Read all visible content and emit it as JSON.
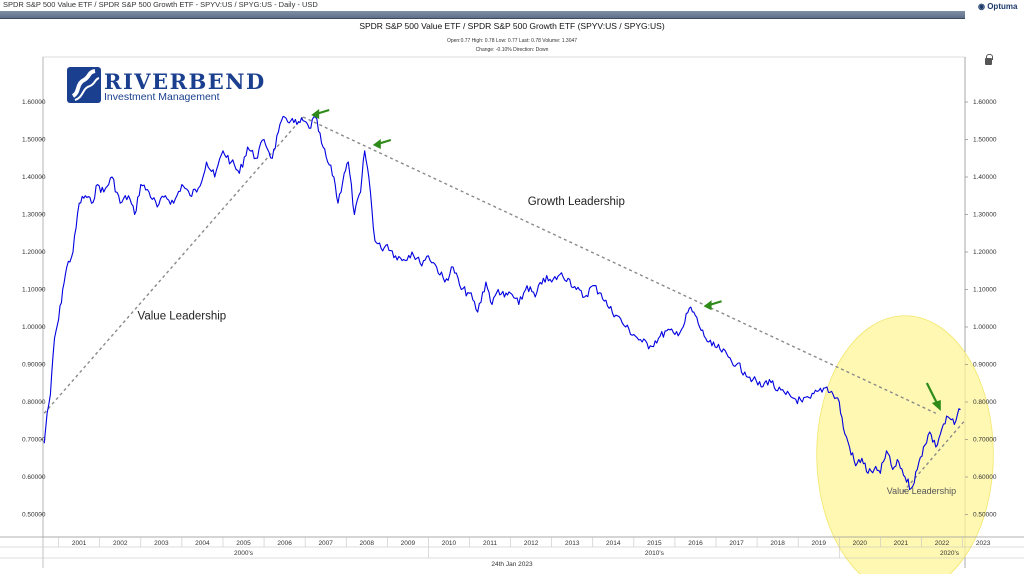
{
  "window": {
    "title": "SPDR S&P 500 Value ETF / SPDR S&P 500 Growth ETF - SPYV:US / SPYG:US - Daily - USD",
    "brand": "Optuma"
  },
  "header": {
    "title": "SPDR S&P 500 Value ETF / SPDR S&P 500 Growth ETF (SPYV:US / SPYG:US)",
    "ohlc": "Open:0.77   High: 0.78   Low: 0.77   Last: 0.78   Volume: 1.3047",
    "change": "Change: -0.10%   Direction: Down"
  },
  "logo": {
    "name": "RIVERBEND",
    "subtitle": "Investment Management"
  },
  "footer": {
    "date": "24th Jan 2023"
  },
  "colors": {
    "price_line": "#0000e0",
    "trend_line": "#8a8a8a",
    "arrow": "#2e8b1a",
    "highlight": "#fff59a",
    "logo": "#1b3f8f"
  },
  "chart_data": {
    "type": "line",
    "title": "SPDR S&P 500 Value ETF / SPDR S&P 500 Growth ETF (SPYV:US / SPYG:US)",
    "xlabel": "",
    "ylabel": "",
    "xlim": [
      2000.62,
      2023.06
    ],
    "ylim": [
      0.44,
      1.72
    ],
    "yticks": [
      0.5,
      0.6,
      0.7,
      0.8,
      0.9,
      1.0,
      1.1,
      1.2,
      1.3,
      1.4,
      1.5,
      1.6
    ],
    "ytick_labels": [
      "0.50000",
      "0.60000",
      "0.70000",
      "0.80000",
      "0.90000",
      "1.00000",
      "1.10000",
      "1.20000",
      "1.30000",
      "1.40000",
      "1.50000",
      "1.60000"
    ],
    "year_labels": [
      "2001",
      "2002",
      "2003",
      "2004",
      "2005",
      "2006",
      "2007",
      "2008",
      "2009",
      "2010",
      "2011",
      "2012",
      "2013",
      "2014",
      "2015",
      "2016",
      "2017",
      "2018",
      "2019",
      "2020",
      "2021",
      "2022",
      "2023"
    ],
    "decade_labels": [
      "2000's",
      "2010's",
      "2020's"
    ],
    "series": [
      {
        "name": "SPYV:US / SPYG:US",
        "x": [
          2000.65,
          2000.72,
          2000.8,
          2000.9,
          2001.0,
          2001.1,
          2001.2,
          2001.35,
          2001.5,
          2001.65,
          2001.8,
          2001.95,
          2002.1,
          2002.3,
          2002.5,
          2002.7,
          2002.85,
          2003.0,
          2003.2,
          2003.4,
          2003.6,
          2003.8,
          2004.0,
          2004.2,
          2004.4,
          2004.6,
          2004.8,
          2005.0,
          2005.2,
          2005.4,
          2005.6,
          2005.8,
          2006.0,
          2006.2,
          2006.35,
          2006.5,
          2006.65,
          2006.8,
          2006.95,
          2007.1,
          2007.25,
          2007.4,
          2007.55,
          2007.7,
          2007.8,
          2007.95,
          2008.05,
          2008.2,
          2008.35,
          2008.45,
          2008.55,
          2008.7,
          2008.85,
          2009.0,
          2009.2,
          2009.4,
          2009.6,
          2009.8,
          2010.0,
          2010.2,
          2010.4,
          2010.6,
          2010.8,
          2011.0,
          2011.2,
          2011.4,
          2011.55,
          2011.7,
          2011.85,
          2012.0,
          2012.2,
          2012.4,
          2012.6,
          2012.8,
          2013.0,
          2013.2,
          2013.4,
          2013.6,
          2013.8,
          2014.0,
          2014.2,
          2014.4,
          2014.6,
          2014.8,
          2015.0,
          2015.2,
          2015.4,
          2015.6,
          2015.8,
          2016.0,
          2016.2,
          2016.35,
          2016.5,
          2016.6,
          2016.75,
          2016.9,
          2017.1,
          2017.3,
          2017.5,
          2017.7,
          2017.9,
          2018.1,
          2018.3,
          2018.5,
          2018.7,
          2018.9,
          2019.1,
          2019.3,
          2019.5,
          2019.7,
          2019.85,
          2020.0,
          2020.1,
          2020.25,
          2020.4,
          2020.55,
          2020.7,
          2020.85,
          2021.0,
          2021.15,
          2021.3,
          2021.45,
          2021.6,
          2021.75,
          2021.9,
          2022.05,
          2022.2,
          2022.35,
          2022.5,
          2022.65,
          2022.8,
          2022.95
        ],
        "values": [
          0.69,
          0.77,
          0.82,
          0.97,
          1.02,
          1.1,
          1.16,
          1.2,
          1.33,
          1.35,
          1.33,
          1.38,
          1.36,
          1.4,
          1.33,
          1.35,
          1.3,
          1.38,
          1.36,
          1.32,
          1.35,
          1.33,
          1.38,
          1.35,
          1.37,
          1.44,
          1.4,
          1.47,
          1.44,
          1.41,
          1.48,
          1.45,
          1.5,
          1.45,
          1.52,
          1.56,
          1.55,
          1.54,
          1.55,
          1.53,
          1.56,
          1.49,
          1.44,
          1.4,
          1.33,
          1.41,
          1.44,
          1.3,
          1.36,
          1.47,
          1.4,
          1.23,
          1.21,
          1.22,
          1.19,
          1.18,
          1.2,
          1.17,
          1.19,
          1.16,
          1.12,
          1.16,
          1.1,
          1.09,
          1.04,
          1.12,
          1.06,
          1.1,
          1.08,
          1.09,
          1.06,
          1.11,
          1.08,
          1.13,
          1.12,
          1.14,
          1.13,
          1.1,
          1.08,
          1.11,
          1.09,
          1.05,
          1.03,
          1.0,
          0.98,
          0.96,
          0.95,
          0.97,
          0.99,
          0.98,
          1.0,
          1.05,
          1.03,
          1.0,
          0.97,
          0.95,
          0.94,
          0.92,
          0.9,
          0.88,
          0.86,
          0.84,
          0.86,
          0.83,
          0.82,
          0.81,
          0.8,
          0.81,
          0.83,
          0.84,
          0.82,
          0.8,
          0.73,
          0.68,
          0.63,
          0.65,
          0.61,
          0.62,
          0.61,
          0.67,
          0.62,
          0.64,
          0.6,
          0.57,
          0.62,
          0.68,
          0.72,
          0.68,
          0.73,
          0.76,
          0.74,
          0.78
        ]
      }
    ],
    "trend_lines": [
      {
        "name": "value-leadership-uptrend",
        "from": [
          2000.65,
          0.77
        ],
        "to": [
          2006.95,
          1.56
        ]
      },
      {
        "name": "growth-leadership-downtrend",
        "from": [
          2006.95,
          1.56
        ],
        "to": [
          2022.35,
          0.77
        ]
      },
      {
        "name": "recent-value-uptrend",
        "from": [
          2021.55,
          0.56
        ],
        "to": [
          2023.05,
          0.75
        ]
      }
    ],
    "arrows": [
      {
        "name": "peak-2007-arrow",
        "x": 2007.05,
        "y": 1.56
      },
      {
        "name": "peak-2008-arrow",
        "x": 2008.55,
        "y": 1.48
      },
      {
        "name": "peak-2016-arrow",
        "x": 2016.6,
        "y": 1.05
      },
      {
        "name": "recent-breakout-arrow",
        "x": 2022.35,
        "y": 0.76
      }
    ],
    "annotations": [
      {
        "text": "Value Leadership",
        "x": 2004.0,
        "y": 1.02
      },
      {
        "text": "Growth Leadership",
        "x": 2013.6,
        "y": 1.325
      },
      {
        "text": "Value Leadership",
        "x": 2022.0,
        "y": 0.555
      }
    ],
    "highlight_circle": {
      "cx": 2021.6,
      "cy": 0.66,
      "rx_years": 2.15,
      "ry": 0.37
    }
  }
}
